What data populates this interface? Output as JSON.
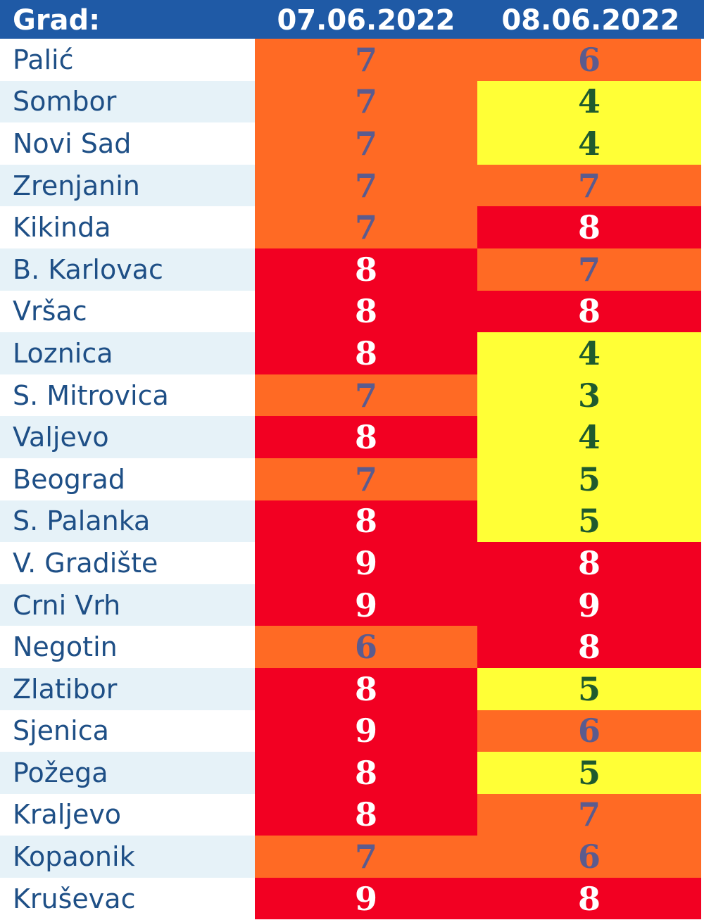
{
  "header": {
    "city_label": "Grad:",
    "date1": "07.06.2022",
    "date2": "08.06.2022"
  },
  "colors": {
    "header_bg": "#1f5aa6",
    "orange": "#ff6a24",
    "red": "#f20022",
    "yellow": "#ffff36",
    "text_dark": "#5b5b8e",
    "text_green": "#1f5a2e",
    "text_white": "#ffffff",
    "city_text": "#1e4f86"
  },
  "rows": [
    {
      "city": "Palić",
      "d1": "7",
      "d2": "6"
    },
    {
      "city": "Sombor",
      "d1": "7",
      "d2": "4"
    },
    {
      "city": "Novi Sad",
      "d1": "7",
      "d2": "4"
    },
    {
      "city": "Zrenjanin",
      "d1": "7",
      "d2": "7"
    },
    {
      "city": "Kikinda",
      "d1": "7",
      "d2": "8"
    },
    {
      "city": "B. Karlovac",
      "d1": "8",
      "d2": "7"
    },
    {
      "city": "Vršac",
      "d1": "8",
      "d2": "8"
    },
    {
      "city": "Loznica",
      "d1": "8",
      "d2": "4"
    },
    {
      "city": "S. Mitrovica",
      "d1": "7",
      "d2": "3"
    },
    {
      "city": "Valjevo",
      "d1": "8",
      "d2": "4"
    },
    {
      "city": "Beograd",
      "d1": "7",
      "d2": "5"
    },
    {
      "city": "S. Palanka",
      "d1": "8",
      "d2": "5"
    },
    {
      "city": "V. Gradište",
      "d1": "9",
      "d2": "8"
    },
    {
      "city": "Crni Vrh",
      "d1": "9",
      "d2": "9"
    },
    {
      "city": "Negotin",
      "d1": "6",
      "d2": "8"
    },
    {
      "city": "Zlatibor",
      "d1": "8",
      "d2": "5"
    },
    {
      "city": "Sjenica",
      "d1": "9",
      "d2": "6"
    },
    {
      "city": "Požega",
      "d1": "8",
      "d2": "5"
    },
    {
      "city": "Kraljevo",
      "d1": "8",
      "d2": "7"
    },
    {
      "city": "Kopaonik",
      "d1": "7",
      "d2": "6"
    },
    {
      "city": "Kruševac",
      "d1": "9",
      "d2": "8"
    }
  ]
}
